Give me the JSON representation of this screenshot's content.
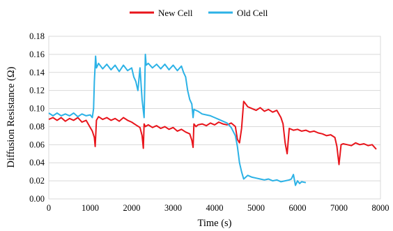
{
  "chart_data": {
    "type": "line",
    "title": "",
    "xlabel": "Time (s)",
    "ylabel": "Diffusion Resistance (Ω)",
    "xlim": [
      0,
      8000
    ],
    "ylim": [
      0,
      0.18
    ],
    "xticks": [
      "0",
      "1000",
      "2000",
      "3000",
      "4000",
      "5000",
      "6000",
      "7000",
      "8000"
    ],
    "yticks": [
      "0.00",
      "0.02",
      "0.04",
      "0.06",
      "0.08",
      "0.10",
      "0.12",
      "0.14",
      "0.16",
      "0.18"
    ],
    "grid": "horizontal",
    "legend_position": "top-center",
    "series": [
      {
        "name": "New Cell",
        "color": "#e8141b",
        "x": [
          0,
          100,
          200,
          300,
          400,
          500,
          600,
          700,
          800,
          900,
          1000,
          1050,
          1100,
          1120,
          1150,
          1200,
          1300,
          1400,
          1500,
          1600,
          1700,
          1800,
          1900,
          2000,
          2100,
          2200,
          2250,
          2280,
          2300,
          2330,
          2400,
          2500,
          2600,
          2700,
          2800,
          2900,
          3000,
          3100,
          3200,
          3300,
          3400,
          3450,
          3480,
          3500,
          3550,
          3600,
          3700,
          3800,
          3900,
          4000,
          4100,
          4200,
          4300,
          4400,
          4500,
          4550,
          4600,
          4650,
          4700,
          4800,
          4900,
          5000,
          5100,
          5200,
          5300,
          5400,
          5500,
          5600,
          5650,
          5700,
          5750,
          5800,
          5900,
          6000,
          6100,
          6200,
          6300,
          6400,
          6500,
          6600,
          6700,
          6800,
          6900,
          6950,
          7000,
          7050,
          7100,
          7200,
          7300,
          7400,
          7500,
          7600,
          7700,
          7800,
          7900
        ],
        "y": [
          0.088,
          0.09,
          0.087,
          0.09,
          0.086,
          0.089,
          0.087,
          0.09,
          0.085,
          0.087,
          0.079,
          0.075,
          0.068,
          0.058,
          0.087,
          0.091,
          0.088,
          0.09,
          0.087,
          0.089,
          0.086,
          0.09,
          0.087,
          0.085,
          0.082,
          0.079,
          0.07,
          0.056,
          0.083,
          0.08,
          0.082,
          0.079,
          0.081,
          0.078,
          0.08,
          0.077,
          0.079,
          0.075,
          0.077,
          0.074,
          0.072,
          0.065,
          0.057,
          0.083,
          0.08,
          0.082,
          0.083,
          0.081,
          0.084,
          0.082,
          0.085,
          0.083,
          0.082,
          0.084,
          0.08,
          0.066,
          0.062,
          0.078,
          0.108,
          0.102,
          0.1,
          0.098,
          0.101,
          0.097,
          0.099,
          0.096,
          0.098,
          0.09,
          0.083,
          0.062,
          0.05,
          0.078,
          0.076,
          0.077,
          0.075,
          0.076,
          0.074,
          0.075,
          0.073,
          0.072,
          0.07,
          0.071,
          0.068,
          0.058,
          0.038,
          0.06,
          0.061,
          0.06,
          0.059,
          0.062,
          0.06,
          0.061,
          0.059,
          0.06,
          0.055
        ]
      },
      {
        "name": "Old Cell",
        "color": "#2cb2e6",
        "x": [
          0,
          100,
          200,
          300,
          400,
          500,
          600,
          700,
          800,
          900,
          1000,
          1050,
          1080,
          1100,
          1130,
          1150,
          1200,
          1300,
          1400,
          1500,
          1600,
          1700,
          1800,
          1900,
          2000,
          2050,
          2100,
          2150,
          2200,
          2250,
          2300,
          2330,
          2350,
          2400,
          2500,
          2600,
          2700,
          2800,
          2900,
          3000,
          3100,
          3200,
          3250,
          3300,
          3350,
          3400,
          3450,
          3480,
          3500,
          3550,
          3600,
          3700,
          3800,
          3900,
          4000,
          4100,
          4200,
          4300,
          4400,
          4500,
          4550,
          4600,
          4650,
          4700,
          4800,
          4900,
          5000,
          5100,
          5200,
          5300,
          5400,
          5500,
          5600,
          5700,
          5800,
          5850,
          5900,
          5950,
          6000,
          6050,
          6100,
          6200
        ],
        "y": [
          0.095,
          0.092,
          0.095,
          0.092,
          0.094,
          0.092,
          0.095,
          0.091,
          0.094,
          0.092,
          0.093,
          0.09,
          0.1,
          0.13,
          0.158,
          0.145,
          0.15,
          0.144,
          0.149,
          0.143,
          0.148,
          0.141,
          0.148,
          0.142,
          0.145,
          0.135,
          0.13,
          0.12,
          0.145,
          0.11,
          0.09,
          0.16,
          0.148,
          0.15,
          0.145,
          0.149,
          0.144,
          0.149,
          0.143,
          0.148,
          0.142,
          0.147,
          0.14,
          0.135,
          0.12,
          0.11,
          0.105,
          0.09,
          0.099,
          0.098,
          0.097,
          0.094,
          0.093,
          0.092,
          0.09,
          0.088,
          0.086,
          0.084,
          0.079,
          0.07,
          0.058,
          0.04,
          0.03,
          0.022,
          0.026,
          0.024,
          0.023,
          0.022,
          0.021,
          0.022,
          0.02,
          0.021,
          0.019,
          0.02,
          0.021,
          0.022,
          0.027,
          0.015,
          0.02,
          0.017,
          0.019,
          0.018
        ]
      }
    ]
  }
}
